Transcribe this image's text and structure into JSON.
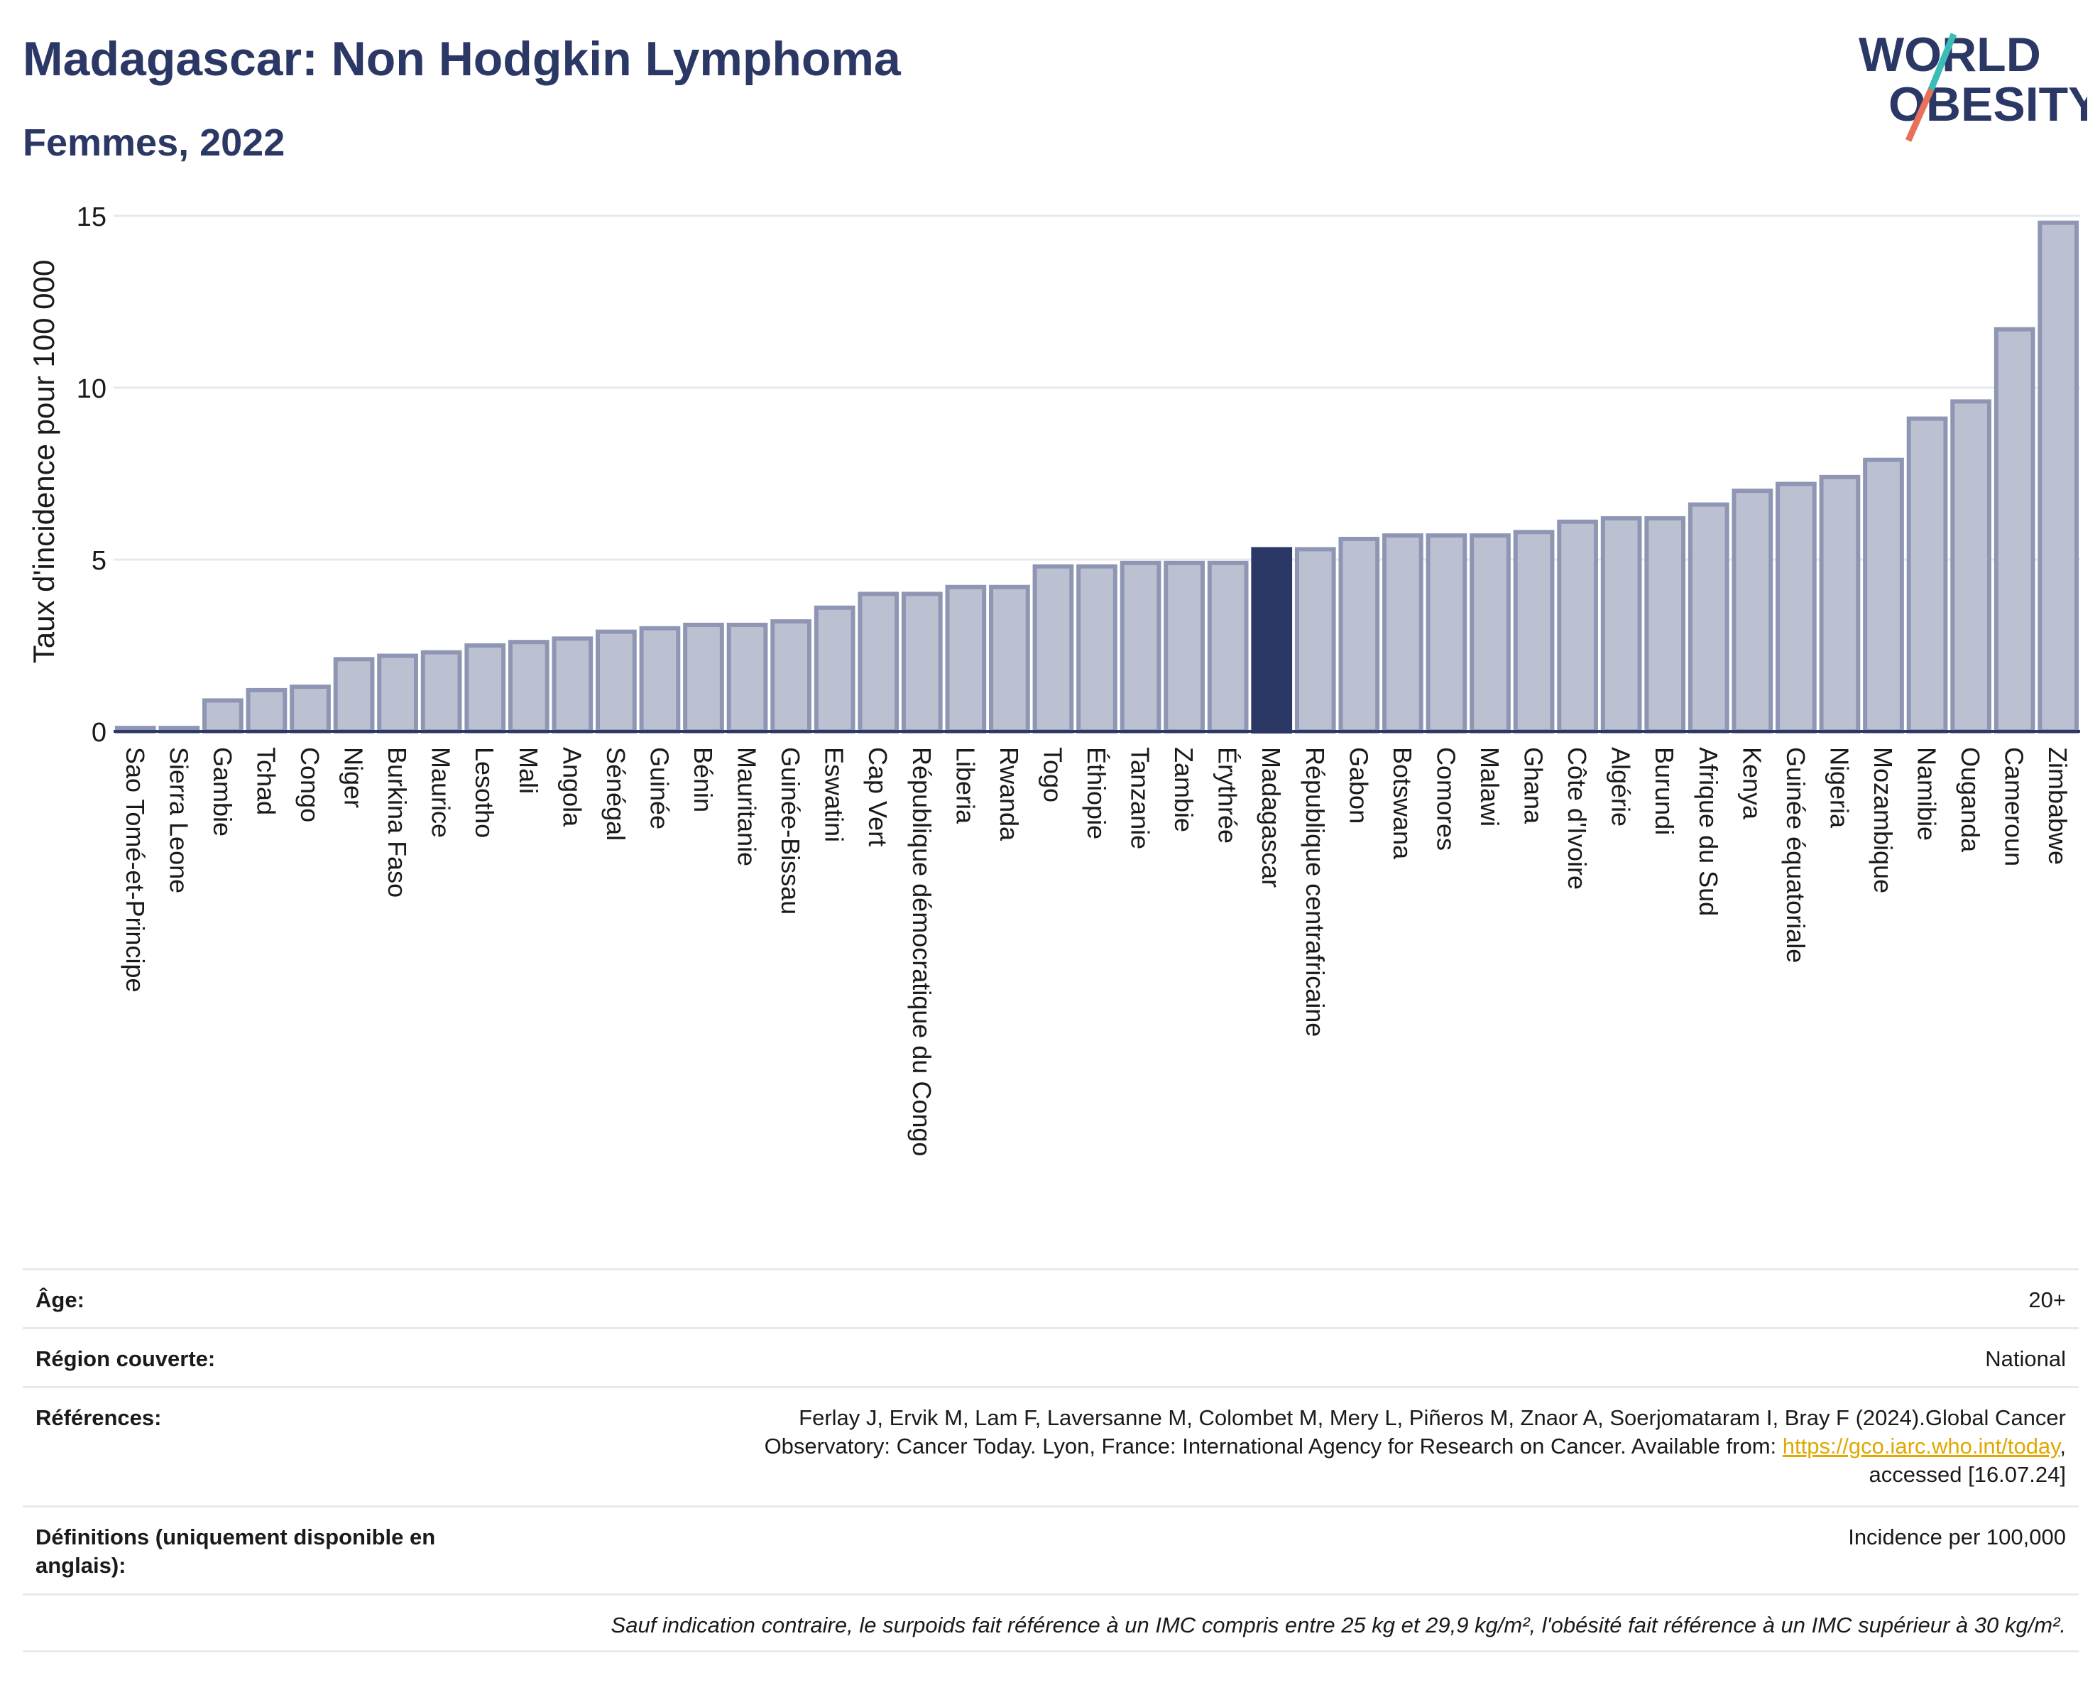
{
  "header": {
    "title": "Madagascar: Non Hodgkin Lymphoma",
    "subtitle": "Femmes, 2022",
    "logo_text_line1": "WORLD",
    "logo_text_line2": "OBESITY"
  },
  "chart_data": {
    "type": "bar",
    "ylabel": "Taux d'incidence pour 100 000",
    "xlabel": "",
    "ylim": [
      0,
      15
    ],
    "yticks": [
      0,
      5,
      10,
      15
    ],
    "grid": true,
    "highlight": "Madagascar",
    "colors": {
      "bar": "#bcc1d1",
      "bar_border": "#8e96b3",
      "highlight": "#2b3764",
      "axis": "#2b3764",
      "grid": "#e6e9f0"
    },
    "categories": [
      "Sao Tomé-et-Principe",
      "Sierra Leone",
      "Gambie",
      "Tchad",
      "Congo",
      "Niger",
      "Burkina Faso",
      "Maurice",
      "Lesotho",
      "Mali",
      "Angola",
      "Sénégal",
      "Guinée",
      "Bénin",
      "Mauritanie",
      "Guinée-Bissau",
      "Eswatini",
      "Cap Vert",
      "République démocratique du Congo",
      "Liberia",
      "Rwanda",
      "Togo",
      "Éthiopie",
      "Tanzanie",
      "Zambie",
      "Érythrée",
      "Madagascar",
      "République centrafricaine",
      "Gabon",
      "Botswana",
      "Comores",
      "Malawi",
      "Ghana",
      "Côte d'Ivoire",
      "Algérie",
      "Burundi",
      "Afrique du Sud",
      "Kenya",
      "Guinée équatoriale",
      "Nigeria",
      "Mozambique",
      "Namibie",
      "Ouganda",
      "Cameroun",
      "Zimbabwe"
    ],
    "values": [
      0.1,
      0.1,
      0.9,
      1.2,
      1.3,
      2.1,
      2.2,
      2.3,
      2.5,
      2.6,
      2.7,
      2.9,
      3.0,
      3.1,
      3.1,
      3.2,
      3.6,
      4.0,
      4.0,
      4.2,
      4.2,
      4.8,
      4.8,
      4.9,
      4.9,
      4.9,
      5.3,
      5.3,
      5.6,
      5.7,
      5.7,
      5.7,
      5.8,
      6.1,
      6.2,
      6.2,
      6.6,
      7.0,
      7.2,
      7.4,
      7.9,
      9.1,
      9.6,
      11.7,
      14.8
    ]
  },
  "info": {
    "age_label": "Âge:",
    "age_value": "20+",
    "region_label": "Région couverte:",
    "region_value": "National",
    "references_label": "Références:",
    "references_line1": "Ferlay J, Ervik M, Lam F, Laversanne M, Colombet M, Mery L, Piñeros M, Znaor A, Soerjomataram I, Bray F (2024).Global Cancer",
    "references_line2_pre": "Observatory: Cancer Today. Lyon, France: International Agency for Research on Cancer. Available from: ",
    "references_link": "https://gco.iarc.who.int/today",
    "references_line2_post": ",",
    "references_line3": "accessed [16.07.24]",
    "definitions_label": "Définitions (uniquement disponible en anglais):",
    "definitions_value": "Incidence per 100,000",
    "note": "Sauf indication contraire, le surpoids fait référence à un IMC compris entre 25 kg et 29,9 kg/m², l'obésité fait référence à un IMC supérieur à 30 kg/m²."
  }
}
